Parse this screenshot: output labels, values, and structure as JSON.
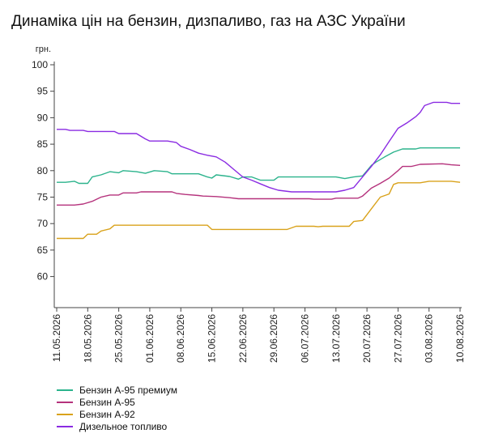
{
  "chart_data": {
    "type": "line",
    "title": "Динаміка цін на бензин, дизпаливо, газ на АЗС України",
    "ylabel": "грн.",
    "ylim": [
      55,
      100
    ],
    "yticks": [
      100,
      95,
      90,
      85,
      80,
      75,
      70,
      65,
      60
    ],
    "grid": false,
    "legend_position": "bottom-left",
    "x_tick_labels": [
      "11.05.2026",
      "18.05.2026",
      "25.05.2026",
      "01.06.2026",
      "08.06.2026",
      "15.06.2026",
      "22.06.2026",
      "29.06.2026",
      "06.07.2026",
      "13.07.2026",
      "20.07.2026",
      "27.07.2026",
      "03.08.2026",
      "10.08.2026"
    ],
    "series": [
      {
        "name": "Бензин А-95 премиум",
        "color": "#2bb38c",
        "points": [
          [
            "11.05.2026",
            77.8
          ],
          [
            "13.05.2026",
            77.8
          ],
          [
            "15.05.2026",
            78.0
          ],
          [
            "16.05.2026",
            77.6
          ],
          [
            "18.05.2026",
            77.6
          ],
          [
            "19.05.2026",
            78.8
          ],
          [
            "21.05.2026",
            79.2
          ],
          [
            "23.05.2026",
            79.8
          ],
          [
            "25.05.2026",
            79.6
          ],
          [
            "26.05.2026",
            80.0
          ],
          [
            "29.05.2026",
            79.8
          ],
          [
            "31.05.2026",
            79.5
          ],
          [
            "02.06.2026",
            80.0
          ],
          [
            "05.06.2026",
            79.8
          ],
          [
            "06.06.2026",
            79.4
          ],
          [
            "12.06.2026",
            79.4
          ],
          [
            "14.06.2026",
            78.8
          ],
          [
            "15.06.2026",
            78.6
          ],
          [
            "16.06.2026",
            79.2
          ],
          [
            "19.06.2026",
            78.9
          ],
          [
            "21.06.2026",
            78.4
          ],
          [
            "22.06.2026",
            78.8
          ],
          [
            "24.06.2026",
            78.8
          ],
          [
            "26.06.2026",
            78.2
          ],
          [
            "29.06.2026",
            78.2
          ],
          [
            "30.06.2026",
            78.8
          ],
          [
            "13.07.2026",
            78.8
          ],
          [
            "15.07.2026",
            78.5
          ],
          [
            "17.07.2026",
            78.8
          ],
          [
            "19.07.2026",
            79.0
          ],
          [
            "20.07.2026",
            80.0
          ],
          [
            "21.07.2026",
            81.0
          ],
          [
            "22.07.2026",
            81.6
          ],
          [
            "24.07.2026",
            82.6
          ],
          [
            "26.07.2026",
            83.5
          ],
          [
            "28.07.2026",
            84.1
          ],
          [
            "31.07.2026",
            84.1
          ],
          [
            "01.08.2026",
            84.3
          ],
          [
            "10.08.2026",
            84.3
          ]
        ]
      },
      {
        "name": "Бензин А-95",
        "color": "#b5327c",
        "points": [
          [
            "11.05.2026",
            73.5
          ],
          [
            "15.05.2026",
            73.5
          ],
          [
            "17.05.2026",
            73.7
          ],
          [
            "19.05.2026",
            74.2
          ],
          [
            "21.05.2026",
            75.0
          ],
          [
            "23.05.2026",
            75.4
          ],
          [
            "25.05.2026",
            75.4
          ],
          [
            "26.05.2026",
            75.8
          ],
          [
            "29.05.2026",
            75.8
          ],
          [
            "30.05.2026",
            76.0
          ],
          [
            "06.06.2026",
            76.0
          ],
          [
            "07.06.2026",
            75.7
          ],
          [
            "09.06.2026",
            75.5
          ],
          [
            "12.06.2026",
            75.3
          ],
          [
            "13.06.2026",
            75.2
          ],
          [
            "16.06.2026",
            75.1
          ],
          [
            "19.06.2026",
            74.9
          ],
          [
            "21.06.2026",
            74.7
          ],
          [
            "07.07.2026",
            74.7
          ],
          [
            "08.07.2026",
            74.6
          ],
          [
            "12.07.2026",
            74.6
          ],
          [
            "13.07.2026",
            74.8
          ],
          [
            "18.07.2026",
            74.8
          ],
          [
            "19.07.2026",
            75.2
          ],
          [
            "21.07.2026",
            76.7
          ],
          [
            "23.07.2026",
            77.6
          ],
          [
            "25.07.2026",
            78.6
          ],
          [
            "27.07.2026",
            80.0
          ],
          [
            "28.07.2026",
            80.8
          ],
          [
            "30.07.2026",
            80.8
          ],
          [
            "01.08.2026",
            81.2
          ],
          [
            "06.08.2026",
            81.3
          ],
          [
            "08.08.2026",
            81.1
          ],
          [
            "10.08.2026",
            81.0
          ]
        ]
      },
      {
        "name": "Бензин А-92",
        "color": "#d9a21b",
        "points": [
          [
            "11.05.2026",
            67.2
          ],
          [
            "17.05.2026",
            67.2
          ],
          [
            "18.05.2026",
            68.0
          ],
          [
            "20.05.2026",
            68.0
          ],
          [
            "21.05.2026",
            68.6
          ],
          [
            "23.05.2026",
            69.0
          ],
          [
            "24.05.2026",
            69.7
          ],
          [
            "14.06.2026",
            69.7
          ],
          [
            "15.06.2026",
            68.9
          ],
          [
            "02.07.2026",
            68.9
          ],
          [
            "04.07.2026",
            69.5
          ],
          [
            "08.07.2026",
            69.5
          ],
          [
            "09.07.2026",
            69.4
          ],
          [
            "10.07.2026",
            69.5
          ],
          [
            "16.07.2026",
            69.5
          ],
          [
            "17.07.2026",
            70.4
          ],
          [
            "19.07.2026",
            70.6
          ],
          [
            "21.07.2026",
            72.8
          ],
          [
            "23.07.2026",
            75.0
          ],
          [
            "25.07.2026",
            75.6
          ],
          [
            "26.07.2026",
            77.4
          ],
          [
            "27.07.2026",
            77.7
          ],
          [
            "01.08.2026",
            77.7
          ],
          [
            "03.08.2026",
            78.0
          ],
          [
            "08.08.2026",
            78.0
          ],
          [
            "10.08.2026",
            77.8
          ]
        ]
      },
      {
        "name": "Дизельное топливо",
        "color": "#8a2be2",
        "points": [
          [
            "11.05.2026",
            87.8
          ],
          [
            "13.05.2026",
            87.8
          ],
          [
            "14.05.2026",
            87.6
          ],
          [
            "17.05.2026",
            87.6
          ],
          [
            "18.05.2026",
            87.4
          ],
          [
            "24.05.2026",
            87.4
          ],
          [
            "25.05.2026",
            87.0
          ],
          [
            "29.05.2026",
            87.0
          ],
          [
            "31.05.2026",
            86.0
          ],
          [
            "01.06.2026",
            85.6
          ],
          [
            "05.06.2026",
            85.6
          ],
          [
            "07.06.2026",
            85.3
          ],
          [
            "08.06.2026",
            84.6
          ],
          [
            "10.06.2026",
            84.0
          ],
          [
            "12.06.2026",
            83.3
          ],
          [
            "14.06.2026",
            82.9
          ],
          [
            "16.06.2026",
            82.6
          ],
          [
            "18.06.2026",
            81.6
          ],
          [
            "20.06.2026",
            80.2
          ],
          [
            "22.06.2026",
            78.8
          ],
          [
            "24.06.2026",
            78.2
          ],
          [
            "26.06.2026",
            77.5
          ],
          [
            "28.06.2026",
            76.8
          ],
          [
            "30.06.2026",
            76.3
          ],
          [
            "03.07.2026",
            76.0
          ],
          [
            "13.07.2026",
            76.0
          ],
          [
            "15.07.2026",
            76.3
          ],
          [
            "17.07.2026",
            76.8
          ],
          [
            "19.07.2026",
            78.8
          ],
          [
            "21.07.2026",
            80.8
          ],
          [
            "23.07.2026",
            83.0
          ],
          [
            "25.07.2026",
            85.5
          ],
          [
            "27.07.2026",
            88.0
          ],
          [
            "29.07.2026",
            89.0
          ],
          [
            "31.07.2026",
            90.2
          ],
          [
            "01.08.2026",
            91.0
          ],
          [
            "02.08.2026",
            92.3
          ],
          [
            "04.08.2026",
            92.9
          ],
          [
            "07.08.2026",
            92.9
          ],
          [
            "08.08.2026",
            92.7
          ],
          [
            "10.08.2026",
            92.7
          ]
        ]
      }
    ]
  }
}
